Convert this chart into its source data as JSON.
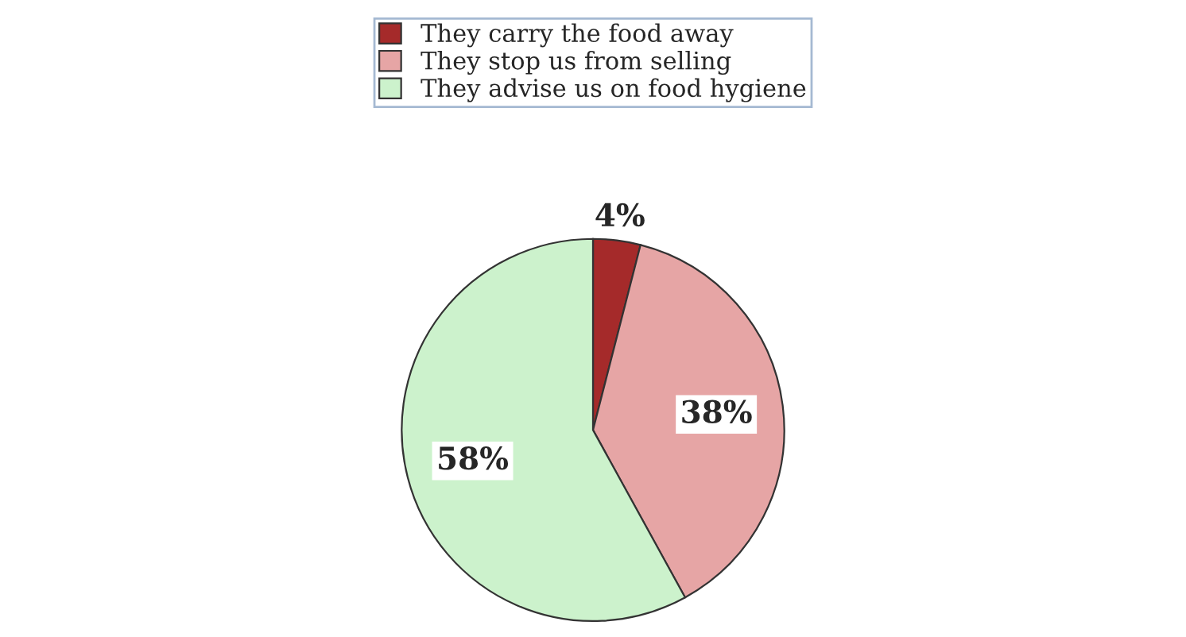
{
  "chart_data": {
    "type": "pie",
    "categories": [
      "They carry the food away",
      "They stop us from selling",
      "They advise us on food hygiene"
    ],
    "values": [
      4,
      38,
      58
    ],
    "colors": [
      "#a52a2a",
      "#e6a5a5",
      "#ccf2cc"
    ],
    "value_labels": [
      "4%",
      "38%",
      "58%"
    ],
    "legend": "top"
  }
}
